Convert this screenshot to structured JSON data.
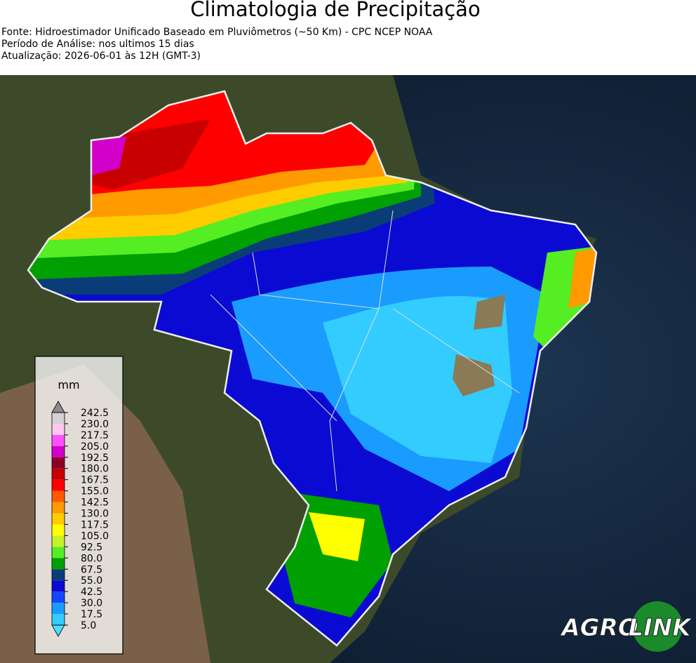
{
  "header": {
    "title": "Climatologia de Precipitação",
    "lines": [
      "Fonte: Hidroestimador Unificado Baseado em Pluviômetros (~50 Km) - CPC NCEP NOAA",
      "Período de Análise: nos ultimos 15 dias",
      "Atualização: 2026-06-01 às 12H (GMT-3)"
    ]
  },
  "legend": {
    "unit": "mm",
    "ticks": [
      {
        "value": 5,
        "label": "5.0"
      },
      {
        "value": 17.5,
        "label": "17.5"
      },
      {
        "value": 30,
        "label": "30.0"
      },
      {
        "value": 42.5,
        "label": "42.5"
      },
      {
        "value": 55,
        "label": "55.0"
      },
      {
        "value": 67.5,
        "label": "67.5"
      },
      {
        "value": 80,
        "label": "80.0"
      },
      {
        "value": 92.5,
        "label": "92.5"
      },
      {
        "value": 105,
        "label": "105.0"
      },
      {
        "value": 117.5,
        "label": "117.5"
      },
      {
        "value": 130,
        "label": "130.0"
      },
      {
        "value": 142.5,
        "label": "142.5"
      },
      {
        "value": 155,
        "label": "155.0"
      },
      {
        "value": 167.5,
        "label": "167.5"
      },
      {
        "value": 180,
        "label": "180.0"
      },
      {
        "value": 192.5,
        "label": "192.5"
      },
      {
        "value": 205,
        "label": "205.0"
      },
      {
        "value": 217.5,
        "label": "217.5"
      },
      {
        "value": 230,
        "label": "230.0"
      },
      {
        "value": 242.5,
        "label": "242.5"
      }
    ],
    "colors": [
      "#33ccff",
      "#1a9cff",
      "#1446ff",
      "#0a0ad2",
      "#0a3c78",
      "#00a000",
      "#55ee22",
      "#c8f028",
      "#ffff00",
      "#ffcc00",
      "#ff9a00",
      "#ff5a00",
      "#ff0000",
      "#c80000",
      "#8c0028",
      "#d200c8",
      "#ff50ff",
      "#ffc8f0",
      "#d2d2d2"
    ],
    "under_color": "#50dcff",
    "over_color": "#8c8c8c"
  },
  "logo": {
    "left": "AGRO",
    "right": "LINK"
  }
}
